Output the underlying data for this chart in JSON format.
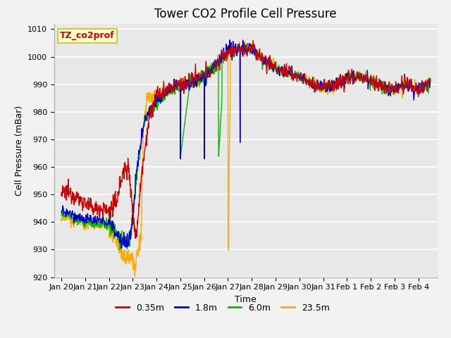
{
  "title": "Tower CO2 Profile Cell Pressure",
  "xlabel": "Time",
  "ylabel": "Cell Pressure (mBar)",
  "ylim": [
    920,
    1012
  ],
  "xlim": [
    -0.3,
    15.8
  ],
  "bg_color": "#e8e8e8",
  "fig_bg_color": "#f2f2f2",
  "grid_color": "#ffffff",
  "legend_label": "TZ_co2prof",
  "legend_bg": "#ffffcc",
  "legend_edge": "#cccc44",
  "series_colors": [
    "#cc0000",
    "#0000cc",
    "#00bb00",
    "#ffaa00"
  ],
  "series_labels": [
    "0.35m",
    "1.8m",
    "6.0m",
    "23.5m"
  ],
  "xtick_labels": [
    "Jan 20",
    "Jan 21",
    "Jan 22",
    "Jan 23",
    "Jan 24",
    "Jan 25",
    "Jan 26",
    "Jan 27",
    "Jan 28",
    "Jan 29",
    "Jan 30",
    "Jan 31",
    "Feb 1",
    "Feb 2",
    "Feb 3",
    "Feb 4"
  ],
  "xtick_positions": [
    0,
    1,
    2,
    3,
    4,
    5,
    6,
    7,
    8,
    9,
    10,
    11,
    12,
    13,
    14,
    15
  ],
  "ytick_positions": [
    920,
    930,
    940,
    950,
    960,
    970,
    980,
    990,
    1000,
    1010
  ],
  "fontsize_title": 12,
  "fontsize_axis": 9,
  "fontsize_tick": 8,
  "fontsize_legend": 9,
  "linewidth": 1.0
}
